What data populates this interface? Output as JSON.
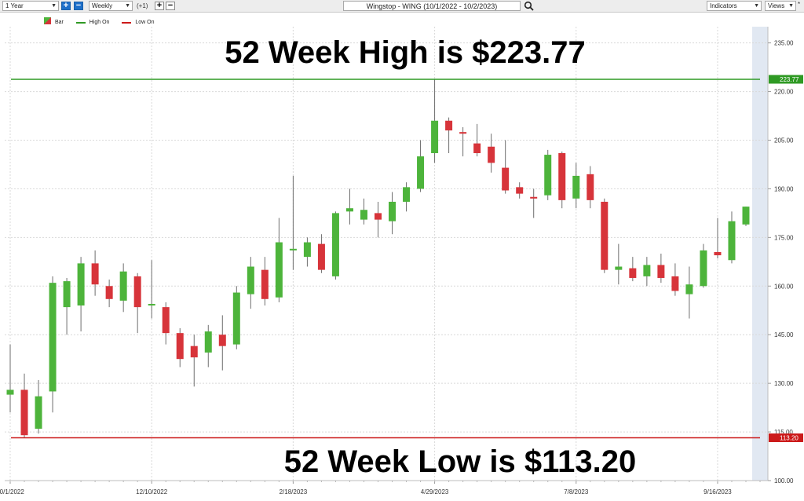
{
  "toolbar": {
    "period": "1 Year",
    "interval": "Weekly",
    "offset": "(+1)",
    "title": "Wingstop - WING (10/1/2022 - 10/2/2023)",
    "indicators": "Indicators",
    "views": "Views",
    "extra": "*"
  },
  "legend": {
    "bar": "Bar",
    "high": "High On",
    "low": "Low On"
  },
  "colors": {
    "up": "#4db43b",
    "down": "#d7343a",
    "high_line": "#2f9a24",
    "low_line": "#cc1a1a"
  },
  "chart_data": {
    "type": "candlestick",
    "annotations": {
      "high_text": "52 Week High is $223.77",
      "low_text": "52 Week Low is $113.20"
    },
    "high_value": 223.77,
    "low_value": 113.2,
    "high_label": "223.77",
    "low_label": "113.20",
    "y_ticks": [
      "235.00",
      "220.00",
      "205.00",
      "190.00",
      "175.00",
      "160.00",
      "145.00",
      "130.00",
      "115.00",
      "100.00"
    ],
    "y_tick_values": [
      235,
      220,
      205,
      190,
      175,
      160,
      145,
      130,
      115,
      100
    ],
    "ylim": [
      100,
      240
    ],
    "x_tick_labels": [
      "10/1/2022",
      "12/10/2022",
      "2/18/2023",
      "4/29/2023",
      "7/8/2023",
      "9/16/2023"
    ],
    "x_tick_dates": [
      "2022-10-02",
      "2022-12-11",
      "2023-02-19",
      "2023-04-30",
      "2023-07-09",
      "2023-09-17"
    ],
    "candles": [
      {
        "date": "2022-10-02",
        "o": 126.5,
        "h": 142.0,
        "l": 121.0,
        "c": 128.0
      },
      {
        "date": "2022-10-09",
        "o": 128.0,
        "h": 133.0,
        "l": 113.2,
        "c": 114.0
      },
      {
        "date": "2022-10-16",
        "o": 116.0,
        "h": 131.0,
        "l": 114.5,
        "c": 126.0
      },
      {
        "date": "2022-10-23",
        "o": 127.5,
        "h": 163.0,
        "l": 121.0,
        "c": 161.0
      },
      {
        "date": "2022-10-30",
        "o": 153.5,
        "h": 162.5,
        "l": 145.0,
        "c": 161.5
      },
      {
        "date": "2022-11-06",
        "o": 154.0,
        "h": 169.0,
        "l": 146.0,
        "c": 167.0
      },
      {
        "date": "2022-11-13",
        "o": 167.0,
        "h": 171.0,
        "l": 157.0,
        "c": 160.5
      },
      {
        "date": "2022-11-20",
        "o": 160.0,
        "h": 162.0,
        "l": 153.5,
        "c": 156.0
      },
      {
        "date": "2022-11-27",
        "o": 155.5,
        "h": 167.0,
        "l": 152.0,
        "c": 164.5
      },
      {
        "date": "2022-12-04",
        "o": 163.0,
        "h": 164.0,
        "l": 145.5,
        "c": 153.5
      },
      {
        "date": "2022-12-11",
        "o": 154.0,
        "h": 168.0,
        "l": 150.0,
        "c": 154.5
      },
      {
        "date": "2022-12-18",
        "o": 153.5,
        "h": 155.0,
        "l": 142.0,
        "c": 145.5
      },
      {
        "date": "2022-12-25",
        "o": 145.5,
        "h": 147.0,
        "l": 135.0,
        "c": 137.5
      },
      {
        "date": "2023-01-01",
        "o": 141.5,
        "h": 145.0,
        "l": 129.0,
        "c": 138.0
      },
      {
        "date": "2023-01-08",
        "o": 139.5,
        "h": 148.0,
        "l": 135.0,
        "c": 146.0
      },
      {
        "date": "2023-01-15",
        "o": 145.0,
        "h": 151.0,
        "l": 134.0,
        "c": 141.5
      },
      {
        "date": "2023-01-22",
        "o": 142.0,
        "h": 160.0,
        "l": 140.5,
        "c": 158.0
      },
      {
        "date": "2023-01-29",
        "o": 157.5,
        "h": 169.0,
        "l": 153.0,
        "c": 166.0
      },
      {
        "date": "2023-02-05",
        "o": 165.0,
        "h": 169.0,
        "l": 154.0,
        "c": 156.0
      },
      {
        "date": "2023-02-12",
        "o": 156.5,
        "h": 181.0,
        "l": 155.0,
        "c": 173.5
      },
      {
        "date": "2023-02-19",
        "o": 171.0,
        "h": 194.0,
        "l": 165.0,
        "c": 171.5
      },
      {
        "date": "2023-02-26",
        "o": 169.0,
        "h": 175.0,
        "l": 166.0,
        "c": 173.5
      },
      {
        "date": "2023-03-05",
        "o": 173.0,
        "h": 176.0,
        "l": 164.0,
        "c": 165.0
      },
      {
        "date": "2023-03-12",
        "o": 163.0,
        "h": 183.0,
        "l": 162.0,
        "c": 182.5
      },
      {
        "date": "2023-03-19",
        "o": 183.0,
        "h": 190.0,
        "l": 179.0,
        "c": 184.0
      },
      {
        "date": "2023-03-26",
        "o": 180.5,
        "h": 187.0,
        "l": 179.0,
        "c": 183.5
      },
      {
        "date": "2023-04-02",
        "o": 182.5,
        "h": 186.0,
        "l": 175.0,
        "c": 180.5
      },
      {
        "date": "2023-04-09",
        "o": 180.0,
        "h": 189.0,
        "l": 176.0,
        "c": 186.0
      },
      {
        "date": "2023-04-16",
        "o": 186.0,
        "h": 192.0,
        "l": 183.0,
        "c": 190.5
      },
      {
        "date": "2023-04-23",
        "o": 190.0,
        "h": 205.0,
        "l": 189.0,
        "c": 200.0
      },
      {
        "date": "2023-04-30",
        "o": 201.0,
        "h": 223.77,
        "l": 198.0,
        "c": 211.0
      },
      {
        "date": "2023-05-07",
        "o": 211.0,
        "h": 212.0,
        "l": 201.0,
        "c": 208.0
      },
      {
        "date": "2023-05-14",
        "o": 207.5,
        "h": 209.0,
        "l": 200.0,
        "c": 207.0
      },
      {
        "date": "2023-05-21",
        "o": 204.0,
        "h": 210.0,
        "l": 200.0,
        "c": 201.0
      },
      {
        "date": "2023-05-28",
        "o": 203.0,
        "h": 207.0,
        "l": 195.0,
        "c": 198.0
      },
      {
        "date": "2023-06-04",
        "o": 196.5,
        "h": 205.0,
        "l": 188.5,
        "c": 189.5
      },
      {
        "date": "2023-06-11",
        "o": 190.5,
        "h": 192.0,
        "l": 187.0,
        "c": 188.5
      },
      {
        "date": "2023-06-18",
        "o": 187.5,
        "h": 190.0,
        "l": 181.0,
        "c": 187.0
      },
      {
        "date": "2023-06-25",
        "o": 188.0,
        "h": 202.0,
        "l": 186.5,
        "c": 200.5
      },
      {
        "date": "2023-07-02",
        "o": 201.0,
        "h": 201.5,
        "l": 184.0,
        "c": 186.5
      },
      {
        "date": "2023-07-09",
        "o": 187.0,
        "h": 198.0,
        "l": 184.0,
        "c": 194.0
      },
      {
        "date": "2023-07-16",
        "o": 194.5,
        "h": 197.0,
        "l": 184.0,
        "c": 186.5
      },
      {
        "date": "2023-07-23",
        "o": 186.0,
        "h": 187.0,
        "l": 164.0,
        "c": 165.0
      },
      {
        "date": "2023-07-30",
        "o": 165.0,
        "h": 173.0,
        "l": 160.5,
        "c": 166.0
      },
      {
        "date": "2023-08-06",
        "o": 165.5,
        "h": 169.0,
        "l": 161.5,
        "c": 162.5
      },
      {
        "date": "2023-08-13",
        "o": 163.0,
        "h": 169.0,
        "l": 160.0,
        "c": 166.5
      },
      {
        "date": "2023-08-20",
        "o": 166.5,
        "h": 170.0,
        "l": 161.0,
        "c": 162.5
      },
      {
        "date": "2023-08-27",
        "o": 163.0,
        "h": 167.0,
        "l": 157.0,
        "c": 158.5
      },
      {
        "date": "2023-09-03",
        "o": 157.5,
        "h": 166.0,
        "l": 150.0,
        "c": 160.5
      },
      {
        "date": "2023-09-10",
        "o": 160.0,
        "h": 173.0,
        "l": 159.5,
        "c": 171.0
      },
      {
        "date": "2023-09-17",
        "o": 170.5,
        "h": 181.0,
        "l": 168.5,
        "c": 169.5
      },
      {
        "date": "2023-09-24",
        "o": 168.0,
        "h": 183.0,
        "l": 167.0,
        "c": 180.0
      },
      {
        "date": "2023-10-01",
        "o": 179.0,
        "h": 184.5,
        "l": 178.5,
        "c": 184.5
      }
    ]
  }
}
